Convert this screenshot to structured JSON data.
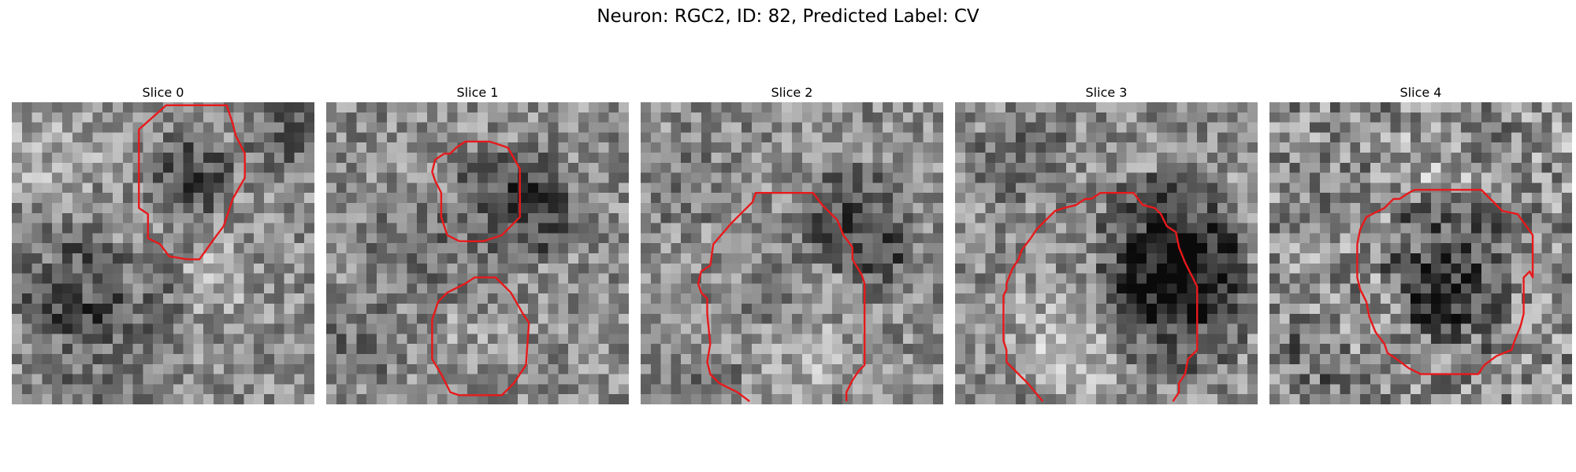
{
  "figure": {
    "title": "Neuron: RGC2, ID: 82, Predicted Label: CV",
    "contour_color": "#e8191b"
  },
  "slices": [
    {
      "title": "Slice 0",
      "contour_closed": true,
      "contour": [
        [
          0.51,
          0.01
        ],
        [
          0.42,
          0.09
        ],
        [
          0.42,
          0.16
        ],
        [
          0.42,
          0.27
        ],
        [
          0.42,
          0.35
        ],
        [
          0.45,
          0.37
        ],
        [
          0.45,
          0.45
        ],
        [
          0.49,
          0.47
        ],
        [
          0.52,
          0.51
        ],
        [
          0.58,
          0.52
        ],
        [
          0.62,
          0.52
        ],
        [
          0.67,
          0.45
        ],
        [
          0.7,
          0.41
        ],
        [
          0.73,
          0.32
        ],
        [
          0.77,
          0.25
        ],
        [
          0.77,
          0.17
        ],
        [
          0.74,
          0.11
        ],
        [
          0.73,
          0.07
        ],
        [
          0.71,
          0.01
        ]
      ]
    },
    {
      "title": "Slice 1",
      "contour_closed": true,
      "contour": [
        [
          0.39,
          0.17
        ],
        [
          0.36,
          0.19
        ],
        [
          0.35,
          0.23
        ],
        [
          0.36,
          0.26
        ],
        [
          0.38,
          0.3
        ],
        [
          0.38,
          0.38
        ],
        [
          0.4,
          0.44
        ],
        [
          0.44,
          0.46
        ],
        [
          0.52,
          0.46
        ],
        [
          0.58,
          0.44
        ],
        [
          0.64,
          0.38
        ],
        [
          0.64,
          0.32
        ],
        [
          0.64,
          0.22
        ],
        [
          0.6,
          0.15
        ],
        [
          0.54,
          0.13
        ],
        [
          0.46,
          0.13
        ],
        [
          0.43,
          0.15
        ],
        [
          0.41,
          0.17
        ]
      ],
      "contour2": [
        [
          0.4,
          0.63
        ],
        [
          0.37,
          0.66
        ],
        [
          0.35,
          0.72
        ],
        [
          0.35,
          0.85
        ],
        [
          0.38,
          0.9
        ],
        [
          0.41,
          0.96
        ],
        [
          0.44,
          0.97
        ],
        [
          0.58,
          0.97
        ],
        [
          0.62,
          0.93
        ],
        [
          0.66,
          0.87
        ],
        [
          0.67,
          0.73
        ],
        [
          0.65,
          0.7
        ],
        [
          0.61,
          0.63
        ],
        [
          0.56,
          0.58
        ],
        [
          0.49,
          0.58
        ],
        [
          0.46,
          0.6
        ],
        [
          0.44,
          0.61
        ]
      ]
    },
    {
      "title": "Slice 2",
      "contour_closed": false,
      "contour": [
        [
          0.36,
          0.99
        ],
        [
          0.32,
          0.96
        ],
        [
          0.26,
          0.93
        ],
        [
          0.23,
          0.9
        ],
        [
          0.22,
          0.86
        ],
        [
          0.23,
          0.8
        ],
        [
          0.22,
          0.7
        ],
        [
          0.22,
          0.65
        ],
        [
          0.2,
          0.63
        ],
        [
          0.19,
          0.6
        ],
        [
          0.2,
          0.56
        ],
        [
          0.23,
          0.54
        ],
        [
          0.24,
          0.47
        ],
        [
          0.3,
          0.4
        ],
        [
          0.33,
          0.37
        ],
        [
          0.37,
          0.33
        ],
        [
          0.38,
          0.3
        ],
        [
          0.57,
          0.3
        ],
        [
          0.6,
          0.34
        ],
        [
          0.65,
          0.39
        ],
        [
          0.67,
          0.44
        ],
        [
          0.7,
          0.48
        ],
        [
          0.7,
          0.52
        ],
        [
          0.73,
          0.57
        ],
        [
          0.74,
          0.6
        ],
        [
          0.74,
          0.87
        ],
        [
          0.72,
          0.89
        ],
        [
          0.7,
          0.92
        ],
        [
          0.68,
          0.96
        ],
        [
          0.68,
          0.99
        ]
      ]
    },
    {
      "title": "Slice 3",
      "contour_closed": false,
      "contour": [
        [
          0.29,
          0.99
        ],
        [
          0.24,
          0.93
        ],
        [
          0.17,
          0.86
        ],
        [
          0.17,
          0.82
        ],
        [
          0.16,
          0.79
        ],
        [
          0.16,
          0.72
        ],
        [
          0.16,
          0.68
        ],
        [
          0.16,
          0.64
        ],
        [
          0.17,
          0.62
        ],
        [
          0.17,
          0.6
        ],
        [
          0.19,
          0.55
        ],
        [
          0.21,
          0.52
        ],
        [
          0.22,
          0.49
        ],
        [
          0.25,
          0.45
        ],
        [
          0.27,
          0.42
        ],
        [
          0.33,
          0.36
        ],
        [
          0.36,
          0.35
        ],
        [
          0.4,
          0.34
        ],
        [
          0.43,
          0.32
        ],
        [
          0.45,
          0.32
        ],
        [
          0.48,
          0.3
        ],
        [
          0.59,
          0.3
        ],
        [
          0.62,
          0.34
        ],
        [
          0.66,
          0.35
        ],
        [
          0.68,
          0.37
        ],
        [
          0.7,
          0.41
        ],
        [
          0.73,
          0.43
        ],
        [
          0.74,
          0.48
        ],
        [
          0.76,
          0.53
        ],
        [
          0.77,
          0.55
        ],
        [
          0.8,
          0.61
        ],
        [
          0.8,
          0.82
        ],
        [
          0.77,
          0.85
        ],
        [
          0.76,
          0.9
        ],
        [
          0.74,
          0.93
        ],
        [
          0.74,
          0.96
        ],
        [
          0.72,
          0.99
        ]
      ]
    },
    {
      "title": "Slice 4",
      "contour_closed": true,
      "contour": [
        [
          0.38,
          0.35
        ],
        [
          0.32,
          0.38
        ],
        [
          0.3,
          0.42
        ],
        [
          0.29,
          0.47
        ],
        [
          0.29,
          0.51
        ],
        [
          0.29,
          0.58
        ],
        [
          0.3,
          0.62
        ],
        [
          0.32,
          0.66
        ],
        [
          0.33,
          0.71
        ],
        [
          0.35,
          0.76
        ],
        [
          0.38,
          0.8
        ],
        [
          0.39,
          0.83
        ],
        [
          0.42,
          0.85
        ],
        [
          0.46,
          0.88
        ],
        [
          0.5,
          0.9
        ],
        [
          0.69,
          0.9
        ],
        [
          0.71,
          0.87
        ],
        [
          0.75,
          0.84
        ],
        [
          0.8,
          0.82
        ],
        [
          0.81,
          0.79
        ],
        [
          0.83,
          0.74
        ],
        [
          0.84,
          0.7
        ],
        [
          0.84,
          0.61
        ],
        [
          0.84,
          0.58
        ],
        [
          0.86,
          0.56
        ],
        [
          0.87,
          0.58
        ],
        [
          0.87,
          0.44
        ],
        [
          0.82,
          0.37
        ],
        [
          0.77,
          0.36
        ],
        [
          0.73,
          0.32
        ],
        [
          0.7,
          0.29
        ],
        [
          0.48,
          0.29
        ],
        [
          0.46,
          0.3
        ],
        [
          0.43,
          0.32
        ],
        [
          0.41,
          0.32
        ]
      ]
    }
  ]
}
